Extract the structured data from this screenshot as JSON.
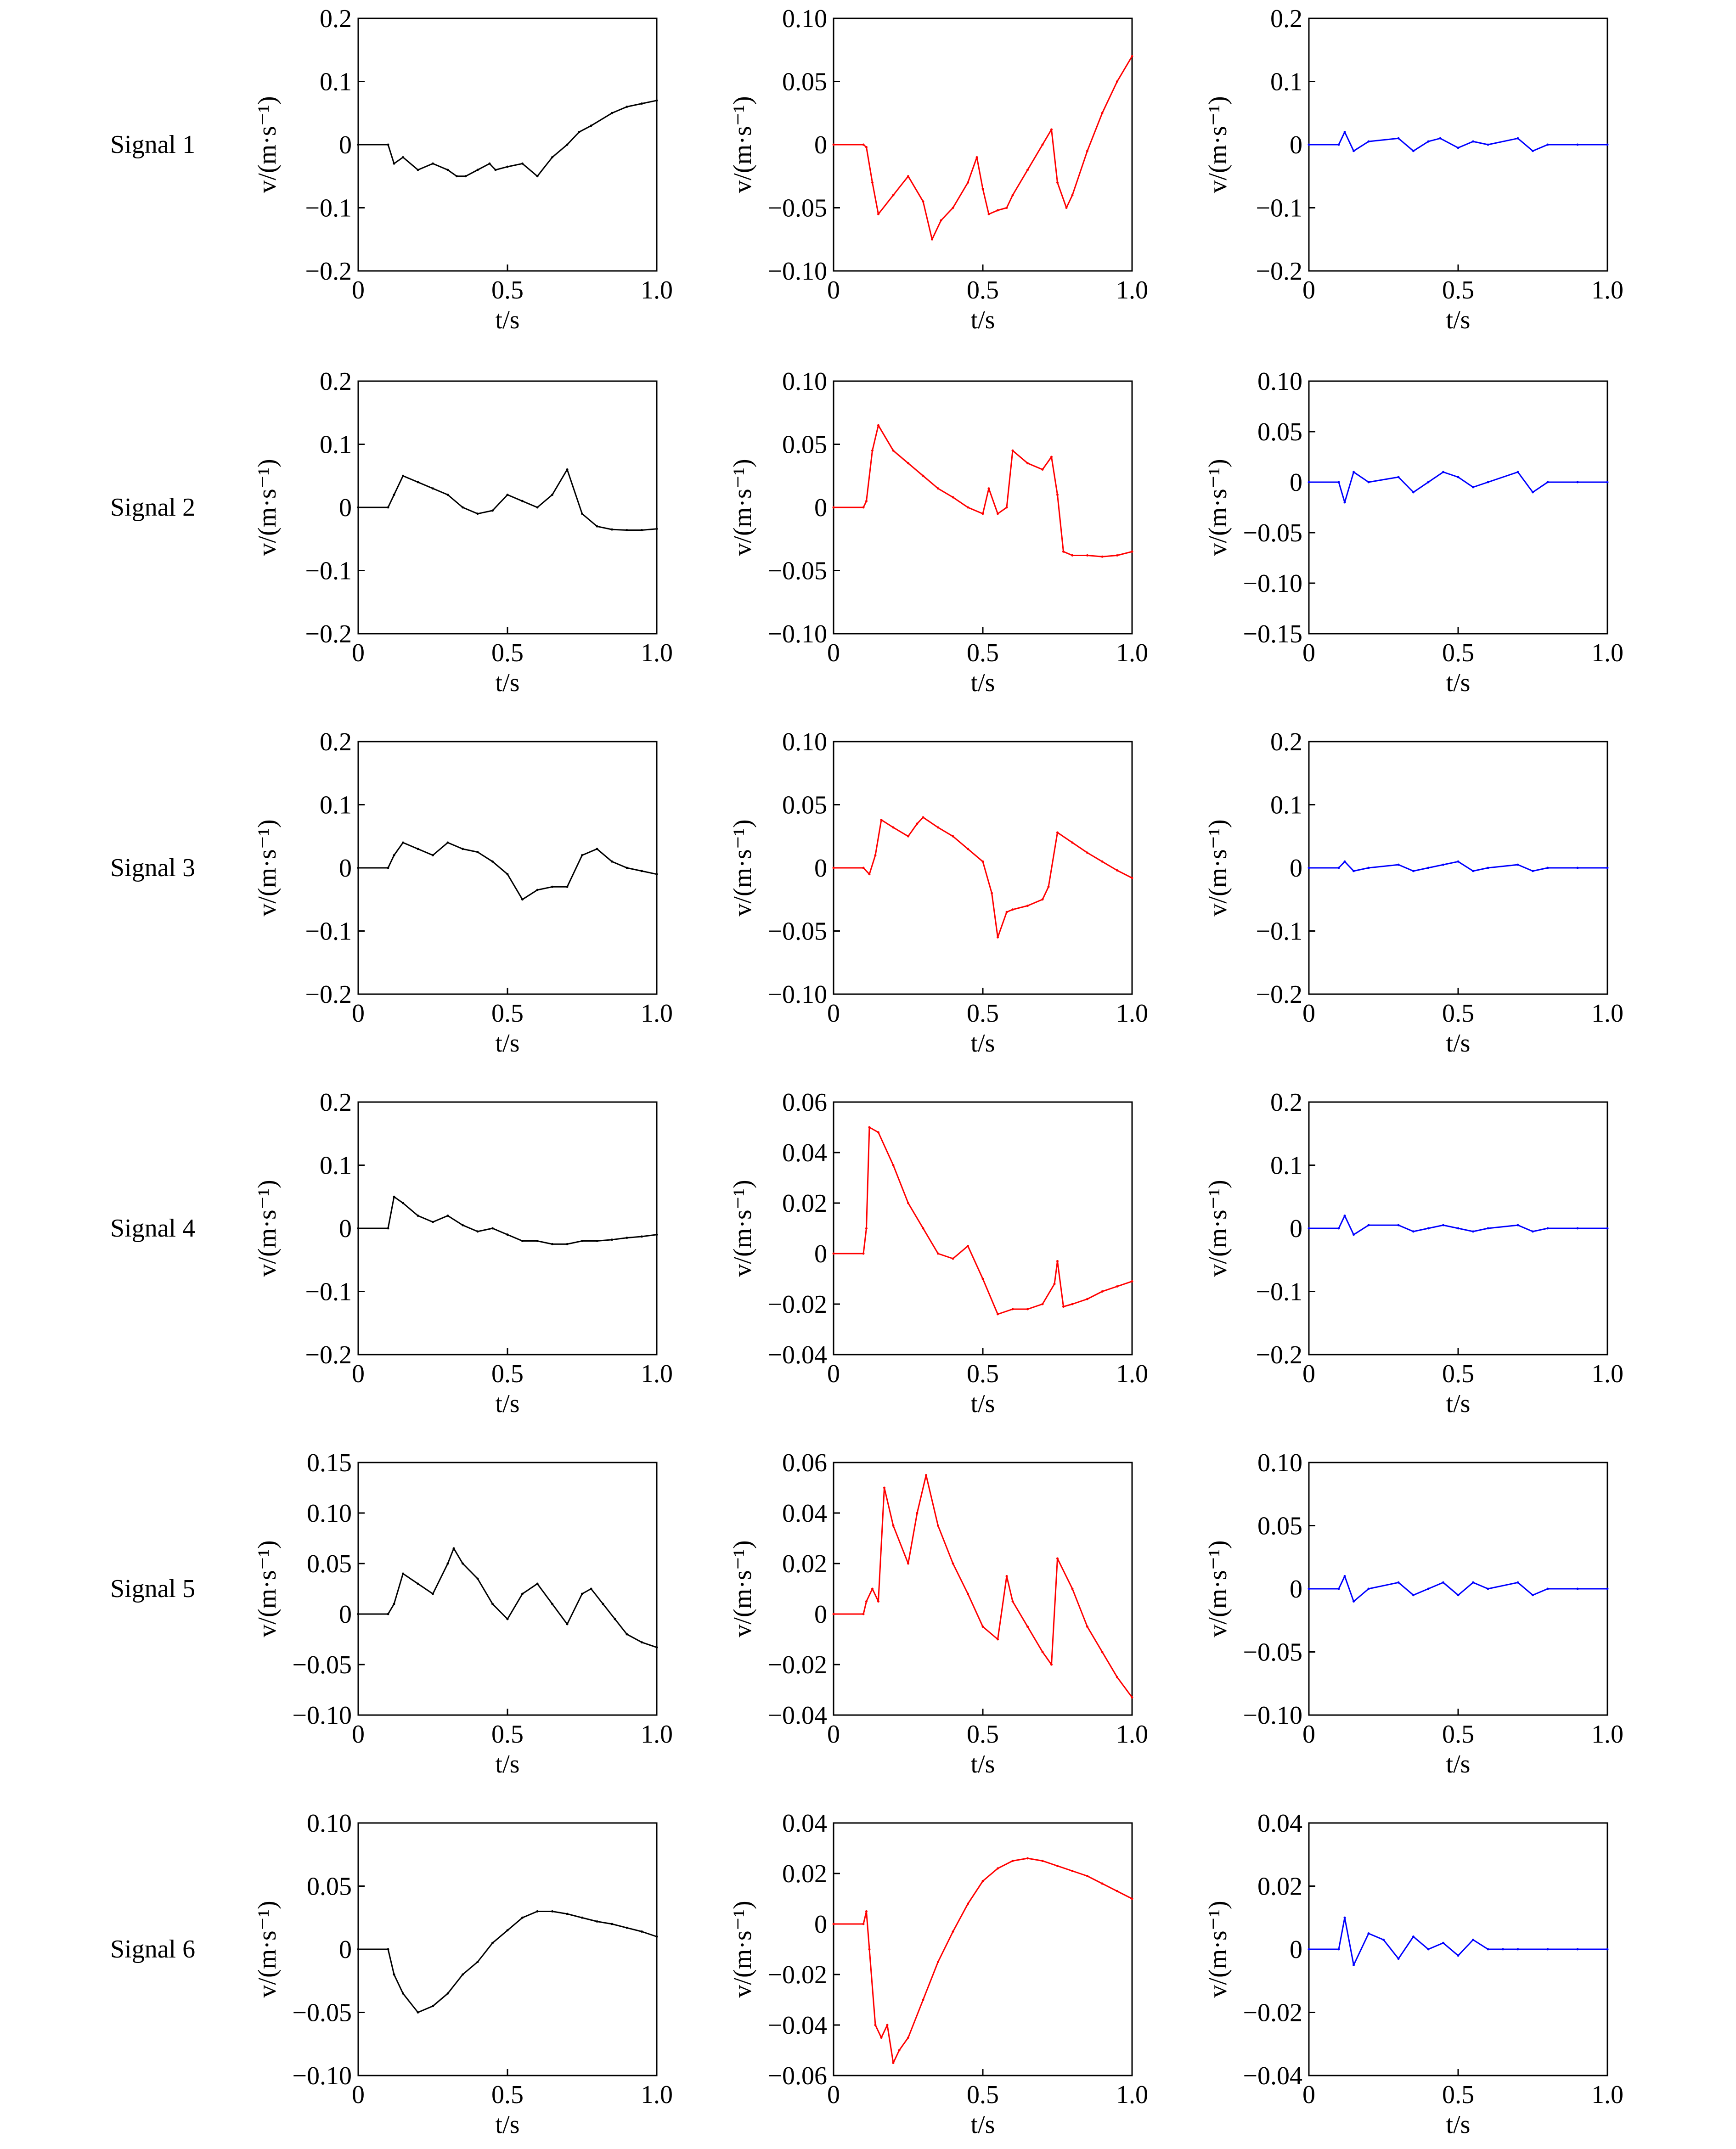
{
  "figure": {
    "rows": [
      "Signal 1",
      "Signal 2",
      "Signal 3",
      "Signal 4",
      "Signal 5",
      "Signal 6"
    ],
    "columns": [
      "black",
      "red",
      "blue"
    ]
  },
  "axes": {
    "xlabel": "t/s",
    "ylabel": "v/(m·s⁻¹)",
    "xticks": [
      "0",
      "0.5",
      "1.0"
    ]
  },
  "colors": {
    "col1": "#000000",
    "col2": "#ff0000",
    "col3": "#0000ff"
  },
  "chart_data": [
    {
      "signal": "Signal 1",
      "column": 1,
      "type": "line",
      "xlim": [
        0,
        1
      ],
      "ylim": [
        -0.2,
        0.2
      ],
      "yticks": [
        "0.2",
        "0.1",
        "0",
        "-0.1",
        "-0.2"
      ],
      "xlabel": "t/s",
      "ylabel": "v/(m·s⁻¹)",
      "color": "#000000",
      "x": [
        0,
        0.1,
        0.12,
        0.15,
        0.2,
        0.25,
        0.3,
        0.33,
        0.36,
        0.4,
        0.44,
        0.46,
        0.5,
        0.55,
        0.6,
        0.65,
        0.7,
        0.74,
        0.78,
        0.85,
        0.9,
        0.95,
        1.0
      ],
      "y": [
        0,
        0,
        -0.03,
        -0.02,
        -0.04,
        -0.03,
        -0.04,
        -0.05,
        -0.05,
        -0.04,
        -0.03,
        -0.04,
        -0.035,
        -0.03,
        -0.05,
        -0.02,
        0.0,
        0.02,
        0.03,
        0.05,
        0.06,
        0.065,
        0.07
      ]
    },
    {
      "signal": "Signal 1",
      "column": 2,
      "type": "line",
      "xlim": [
        0,
        1
      ],
      "ylim": [
        -0.1,
        0.1
      ],
      "yticks": [
        "0.10",
        "0.05",
        "0",
        "-0.05",
        "-0.10"
      ],
      "xlabel": "t/s",
      "ylabel": "v/(m·s⁻¹)",
      "color": "#ff0000",
      "x": [
        0,
        0.1,
        0.11,
        0.13,
        0.15,
        0.2,
        0.25,
        0.3,
        0.33,
        0.36,
        0.4,
        0.45,
        0.48,
        0.5,
        0.52,
        0.55,
        0.58,
        0.6,
        0.65,
        0.7,
        0.73,
        0.75,
        0.78,
        0.8,
        0.85,
        0.9,
        0.95,
        1.0
      ],
      "y": [
        0,
        0,
        -0.002,
        -0.03,
        -0.055,
        -0.04,
        -0.025,
        -0.045,
        -0.075,
        -0.06,
        -0.05,
        -0.03,
        -0.01,
        -0.035,
        -0.055,
        -0.052,
        -0.05,
        -0.04,
        -0.02,
        0.0,
        0.012,
        -0.03,
        -0.05,
        -0.04,
        -0.005,
        0.025,
        0.05,
        0.07
      ]
    },
    {
      "signal": "Signal 1",
      "column": 3,
      "type": "line",
      "xlim": [
        0,
        1
      ],
      "ylim": [
        -0.2,
        0.2
      ],
      "yticks": [
        "0.2",
        "0.1",
        "0",
        "-0.1",
        "-0.2"
      ],
      "xlabel": "t/s",
      "ylabel": "v/(m·s⁻¹)",
      "color": "#0000ff",
      "x": [
        0,
        0.1,
        0.12,
        0.15,
        0.2,
        0.3,
        0.35,
        0.4,
        0.44,
        0.5,
        0.55,
        0.6,
        0.7,
        0.75,
        0.8,
        0.9,
        1.0
      ],
      "y": [
        0,
        0,
        0.02,
        -0.01,
        0.005,
        0.01,
        -0.01,
        0.005,
        0.01,
        -0.005,
        0.005,
        0.0,
        0.01,
        -0.01,
        0.0,
        0,
        0
      ]
    },
    {
      "signal": "Signal 2",
      "column": 1,
      "type": "line",
      "xlim": [
        0,
        1
      ],
      "ylim": [
        -0.2,
        0.2
      ],
      "yticks": [
        "0.2",
        "0.1",
        "0",
        "-0.1",
        "-0.2"
      ],
      "xlabel": "t/s",
      "ylabel": "v/(m·s⁻¹)",
      "color": "#000000",
      "x": [
        0,
        0.1,
        0.12,
        0.15,
        0.2,
        0.25,
        0.3,
        0.35,
        0.4,
        0.45,
        0.5,
        0.55,
        0.6,
        0.65,
        0.7,
        0.75,
        0.8,
        0.85,
        0.9,
        0.95,
        1.0
      ],
      "y": [
        0,
        0,
        0.02,
        0.05,
        0.04,
        0.03,
        0.02,
        0.0,
        -0.01,
        -0.005,
        0.02,
        0.01,
        0.0,
        0.02,
        0.06,
        -0.01,
        -0.03,
        -0.035,
        -0.036,
        -0.036,
        -0.034
      ]
    },
    {
      "signal": "Signal 2",
      "column": 2,
      "type": "line",
      "xlim": [
        0,
        1
      ],
      "ylim": [
        -0.1,
        0.1
      ],
      "yticks": [
        "0.10",
        "0.05",
        "0",
        "-0.05",
        "-0.10"
      ],
      "xlabel": "t/s",
      "ylabel": "v/(m·s⁻¹)",
      "color": "#ff0000",
      "x": [
        0,
        0.1,
        0.11,
        0.13,
        0.15,
        0.2,
        0.25,
        0.3,
        0.35,
        0.4,
        0.45,
        0.5,
        0.52,
        0.55,
        0.58,
        0.6,
        0.65,
        0.7,
        0.73,
        0.75,
        0.77,
        0.8,
        0.85,
        0.9,
        0.95,
        1.0
      ],
      "y": [
        0,
        0,
        0.005,
        0.045,
        0.065,
        0.045,
        0.035,
        0.025,
        0.015,
        0.008,
        0.0,
        -0.005,
        0.015,
        -0.005,
        0.0,
        0.045,
        0.035,
        0.03,
        0.04,
        0.01,
        -0.035,
        -0.038,
        -0.038,
        -0.039,
        -0.038,
        -0.035
      ]
    },
    {
      "signal": "Signal 2",
      "column": 3,
      "type": "line",
      "xlim": [
        0,
        1
      ],
      "ylim": [
        -0.15,
        0.1
      ],
      "yticks": [
        "0.10",
        "0.05",
        "0",
        "-0.05",
        "-0.10",
        "-0.15"
      ],
      "xlabel": "t/s",
      "ylabel": "v/(m·s⁻¹)",
      "color": "#0000ff",
      "x": [
        0,
        0.1,
        0.12,
        0.15,
        0.2,
        0.3,
        0.35,
        0.4,
        0.45,
        0.5,
        0.55,
        0.6,
        0.7,
        0.75,
        0.8,
        0.9,
        1.0
      ],
      "y": [
        0,
        0,
        -0.02,
        0.01,
        0.0,
        0.005,
        -0.01,
        0.0,
        0.01,
        0.005,
        -0.005,
        0.0,
        0.01,
        -0.01,
        0.0,
        0,
        0
      ]
    },
    {
      "signal": "Signal 3",
      "column": 1,
      "type": "line",
      "xlim": [
        0,
        1
      ],
      "ylim": [
        -0.2,
        0.2
      ],
      "yticks": [
        "0.2",
        "0.1",
        "0",
        "-0.1",
        "-0.2"
      ],
      "xlabel": "t/s",
      "ylabel": "v/(m·s⁻¹)",
      "color": "#000000",
      "x": [
        0,
        0.1,
        0.12,
        0.15,
        0.2,
        0.25,
        0.3,
        0.35,
        0.4,
        0.45,
        0.5,
        0.55,
        0.6,
        0.65,
        0.7,
        0.75,
        0.8,
        0.85,
        0.9,
        0.95,
        1.0
      ],
      "y": [
        0,
        0,
        0.02,
        0.04,
        0.03,
        0.02,
        0.04,
        0.03,
        0.025,
        0.01,
        -0.01,
        -0.05,
        -0.035,
        -0.03,
        -0.03,
        0.02,
        0.03,
        0.01,
        0.0,
        -0.005,
        -0.01
      ]
    },
    {
      "signal": "Signal 3",
      "column": 2,
      "type": "line",
      "xlim": [
        0,
        1
      ],
      "ylim": [
        -0.1,
        0.1
      ],
      "yticks": [
        "0.10",
        "0.05",
        "0",
        "-0.05",
        "-0.10"
      ],
      "xlabel": "t/s",
      "ylabel": "v/(m·s⁻¹)",
      "color": "#ff0000",
      "x": [
        0,
        0.1,
        0.12,
        0.14,
        0.16,
        0.2,
        0.25,
        0.28,
        0.3,
        0.35,
        0.4,
        0.45,
        0.5,
        0.53,
        0.55,
        0.58,
        0.6,
        0.65,
        0.7,
        0.72,
        0.75,
        0.8,
        0.85,
        0.9,
        0.95,
        1.0
      ],
      "y": [
        0,
        0,
        -0.005,
        0.01,
        0.038,
        0.032,
        0.025,
        0.035,
        0.04,
        0.032,
        0.025,
        0.015,
        0.005,
        -0.02,
        -0.055,
        -0.035,
        -0.033,
        -0.03,
        -0.025,
        -0.015,
        0.028,
        0.02,
        0.012,
        0.005,
        -0.002,
        -0.008
      ]
    },
    {
      "signal": "Signal 3",
      "column": 3,
      "type": "line",
      "xlim": [
        0,
        1
      ],
      "ylim": [
        -0.2,
        0.2
      ],
      "yticks": [
        "0.2",
        "0.1",
        "0",
        "-0.1",
        "-0.2"
      ],
      "xlabel": "t/s",
      "ylabel": "v/(m·s⁻¹)",
      "color": "#0000ff",
      "x": [
        0,
        0.1,
        0.12,
        0.15,
        0.2,
        0.3,
        0.35,
        0.4,
        0.45,
        0.5,
        0.55,
        0.6,
        0.7,
        0.75,
        0.8,
        0.9,
        1.0
      ],
      "y": [
        0,
        0,
        0.01,
        -0.005,
        0.0,
        0.005,
        -0.005,
        0.0,
        0.005,
        0.01,
        -0.005,
        0.0,
        0.005,
        -0.005,
        0.0,
        0,
        0
      ]
    },
    {
      "signal": "Signal 4",
      "column": 1,
      "type": "line",
      "xlim": [
        0,
        1
      ],
      "ylim": [
        -0.2,
        0.2
      ],
      "yticks": [
        "0.2",
        "0.1",
        "0",
        "-0.1",
        "-0.2"
      ],
      "xlabel": "t/s",
      "ylabel": "v/(m·s⁻¹)",
      "color": "#000000",
      "x": [
        0,
        0.1,
        0.12,
        0.15,
        0.2,
        0.25,
        0.3,
        0.35,
        0.4,
        0.45,
        0.5,
        0.55,
        0.6,
        0.65,
        0.7,
        0.75,
        0.8,
        0.85,
        0.9,
        0.95,
        1.0
      ],
      "y": [
        0,
        0,
        0.05,
        0.04,
        0.02,
        0.01,
        0.02,
        0.005,
        -0.005,
        0.0,
        -0.01,
        -0.02,
        -0.02,
        -0.025,
        -0.025,
        -0.02,
        -0.02,
        -0.018,
        -0.015,
        -0.013,
        -0.01
      ]
    },
    {
      "signal": "Signal 4",
      "column": 2,
      "type": "line",
      "xlim": [
        0,
        1
      ],
      "ylim": [
        -0.04,
        0.06
      ],
      "yticks": [
        "0.06",
        "0.04",
        "0.02",
        "0",
        "-0.02",
        "-0.04"
      ],
      "xlabel": "t/s",
      "ylabel": "v/(m·s⁻¹)",
      "color": "#ff0000",
      "x": [
        0,
        0.1,
        0.11,
        0.12,
        0.15,
        0.2,
        0.25,
        0.3,
        0.35,
        0.4,
        0.45,
        0.5,
        0.55,
        0.6,
        0.65,
        0.7,
        0.74,
        0.75,
        0.77,
        0.8,
        0.85,
        0.9,
        0.95,
        1.0
      ],
      "y": [
        0,
        0,
        0.01,
        0.05,
        0.048,
        0.035,
        0.02,
        0.01,
        0.0,
        -0.002,
        0.003,
        -0.01,
        -0.024,
        -0.022,
        -0.022,
        -0.02,
        -0.012,
        -0.003,
        -0.021,
        -0.02,
        -0.018,
        -0.015,
        -0.013,
        -0.011
      ]
    },
    {
      "signal": "Signal 4",
      "column": 3,
      "type": "line",
      "xlim": [
        0,
        1
      ],
      "ylim": [
        -0.2,
        0.2
      ],
      "yticks": [
        "0.2",
        "0.1",
        "0",
        "-0.1",
        "-0.2"
      ],
      "xlabel": "t/s",
      "ylabel": "v/(m·s⁻¹)",
      "color": "#0000ff",
      "x": [
        0,
        0.1,
        0.12,
        0.15,
        0.2,
        0.3,
        0.35,
        0.4,
        0.45,
        0.5,
        0.55,
        0.6,
        0.7,
        0.75,
        0.8,
        0.9,
        1.0
      ],
      "y": [
        0,
        0,
        0.02,
        -0.01,
        0.005,
        0.005,
        -0.005,
        0.0,
        0.005,
        0.0,
        -0.005,
        0.0,
        0.005,
        -0.005,
        0.0,
        0,
        0
      ]
    },
    {
      "signal": "Signal 5",
      "column": 1,
      "type": "line",
      "xlim": [
        0,
        1
      ],
      "ylim": [
        -0.1,
        0.15
      ],
      "yticks": [
        "0.15",
        "0.10",
        "0.05",
        "0",
        "-0.05",
        "-0.10"
      ],
      "xlabel": "t/s",
      "ylabel": "v/(m·s⁻¹)",
      "color": "#000000",
      "x": [
        0,
        0.1,
        0.12,
        0.15,
        0.2,
        0.25,
        0.3,
        0.32,
        0.35,
        0.4,
        0.45,
        0.5,
        0.55,
        0.6,
        0.65,
        0.7,
        0.75,
        0.78,
        0.82,
        0.86,
        0.9,
        0.95,
        1.0
      ],
      "y": [
        0,
        0,
        0.01,
        0.04,
        0.03,
        0.02,
        0.05,
        0.065,
        0.05,
        0.035,
        0.01,
        -0.005,
        0.02,
        0.03,
        0.01,
        -0.01,
        0.02,
        0.025,
        0.01,
        -0.005,
        -0.02,
        -0.028,
        -0.033
      ]
    },
    {
      "signal": "Signal 5",
      "column": 2,
      "type": "line",
      "xlim": [
        0,
        1
      ],
      "ylim": [
        -0.04,
        0.06
      ],
      "yticks": [
        "0.06",
        "0.04",
        "0.02",
        "0",
        "-0.02",
        "-0.04"
      ],
      "xlabel": "t/s",
      "ylabel": "v/(m·s⁻¹)",
      "color": "#ff0000",
      "x": [
        0,
        0.1,
        0.11,
        0.13,
        0.15,
        0.17,
        0.2,
        0.25,
        0.28,
        0.31,
        0.35,
        0.4,
        0.45,
        0.5,
        0.55,
        0.58,
        0.6,
        0.65,
        0.7,
        0.73,
        0.75,
        0.8,
        0.85,
        0.9,
        0.95,
        1.0
      ],
      "y": [
        0,
        0,
        0.005,
        0.01,
        0.005,
        0.05,
        0.035,
        0.02,
        0.04,
        0.055,
        0.035,
        0.02,
        0.008,
        -0.005,
        -0.01,
        0.015,
        0.005,
        -0.005,
        -0.015,
        -0.02,
        0.022,
        0.01,
        -0.005,
        -0.015,
        -0.025,
        -0.033
      ]
    },
    {
      "signal": "Signal 5",
      "column": 3,
      "type": "line",
      "xlim": [
        0,
        1
      ],
      "ylim": [
        -0.1,
        0.1
      ],
      "yticks": [
        "0.10",
        "0.05",
        "0",
        "-0.05",
        "-0.10"
      ],
      "xlabel": "t/s",
      "ylabel": "v/(m·s⁻¹)",
      "color": "#0000ff",
      "x": [
        0,
        0.1,
        0.12,
        0.15,
        0.2,
        0.3,
        0.35,
        0.4,
        0.45,
        0.5,
        0.55,
        0.6,
        0.7,
        0.75,
        0.8,
        0.9,
        1.0
      ],
      "y": [
        0,
        0,
        0.01,
        -0.01,
        0.0,
        0.005,
        -0.005,
        0.0,
        0.005,
        -0.005,
        0.005,
        0.0,
        0.005,
        -0.005,
        0.0,
        0,
        0
      ]
    },
    {
      "signal": "Signal 6",
      "column": 1,
      "type": "line",
      "xlim": [
        0,
        1
      ],
      "ylim": [
        -0.1,
        0.1
      ],
      "yticks": [
        "0.10",
        "0.05",
        "0",
        "-0.05",
        "-0.10"
      ],
      "xlabel": "t/s",
      "ylabel": "v/(m·s⁻¹)",
      "color": "#000000",
      "x": [
        0,
        0.1,
        0.12,
        0.15,
        0.2,
        0.25,
        0.3,
        0.35,
        0.4,
        0.45,
        0.5,
        0.55,
        0.6,
        0.65,
        0.7,
        0.75,
        0.8,
        0.85,
        0.9,
        0.95,
        1.0
      ],
      "y": [
        0,
        0,
        -0.02,
        -0.035,
        -0.05,
        -0.045,
        -0.035,
        -0.02,
        -0.01,
        0.005,
        0.015,
        0.025,
        0.03,
        0.03,
        0.028,
        0.025,
        0.022,
        0.02,
        0.017,
        0.014,
        0.01
      ]
    },
    {
      "signal": "Signal 6",
      "column": 2,
      "type": "line",
      "xlim": [
        0,
        1
      ],
      "ylim": [
        -0.06,
        0.04
      ],
      "yticks": [
        "0.04",
        "0.02",
        "0",
        "-0.02",
        "-0.04",
        "-0.06"
      ],
      "xlabel": "t/s",
      "ylabel": "v/(m·s⁻¹)",
      "color": "#ff0000",
      "x": [
        0,
        0.1,
        0.11,
        0.12,
        0.14,
        0.16,
        0.18,
        0.2,
        0.22,
        0.25,
        0.3,
        0.35,
        0.4,
        0.45,
        0.5,
        0.55,
        0.6,
        0.65,
        0.7,
        0.75,
        0.8,
        0.85,
        0.9,
        0.95,
        1.0
      ],
      "y": [
        0,
        0,
        0.005,
        -0.01,
        -0.04,
        -0.045,
        -0.04,
        -0.055,
        -0.05,
        -0.045,
        -0.03,
        -0.015,
        -0.003,
        0.008,
        0.017,
        0.022,
        0.025,
        0.026,
        0.025,
        0.023,
        0.021,
        0.019,
        0.016,
        0.013,
        0.01
      ]
    },
    {
      "signal": "Signal 6",
      "column": 3,
      "type": "line",
      "xlim": [
        0,
        1
      ],
      "ylim": [
        -0.04,
        0.04
      ],
      "yticks": [
        "0.04",
        "0.02",
        "0",
        "-0.02",
        "-0.04"
      ],
      "xlabel": "t/s",
      "ylabel": "v/(m·s⁻¹)",
      "color": "#0000ff",
      "x": [
        0,
        0.1,
        0.12,
        0.15,
        0.2,
        0.25,
        0.3,
        0.35,
        0.4,
        0.45,
        0.5,
        0.55,
        0.6,
        0.65,
        0.7,
        0.8,
        0.9,
        1.0
      ],
      "y": [
        0,
        0,
        0.01,
        -0.005,
        0.005,
        0.003,
        -0.003,
        0.004,
        0.0,
        0.002,
        -0.002,
        0.003,
        0.0,
        0.0,
        0.0,
        0,
        0,
        0
      ]
    }
  ]
}
